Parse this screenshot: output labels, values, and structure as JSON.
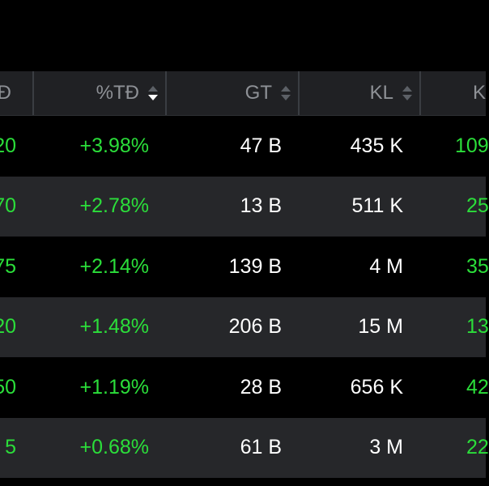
{
  "colors": {
    "background": "#000000",
    "header_bg": "#202124",
    "row_alt_bg": "#26272a",
    "up_green": "#2bde3a",
    "text_white": "#ffffff",
    "header_text": "#8e9196"
  },
  "header": {
    "col0": "Đ",
    "col1": "%TĐ",
    "col2": "GT",
    "col3": "KL",
    "col4": "K"
  },
  "rows": [
    {
      "c0": "20",
      "c1": "+3.98%",
      "c2": "47 B",
      "c3": "435 K",
      "c4": "109"
    },
    {
      "c0": "70",
      "c1": "+2.78%",
      "c2": "13 B",
      "c3": "511 K",
      "c4": "25"
    },
    {
      "c0": "75",
      "c1": "+2.14%",
      "c2": "139 B",
      "c3": "4 M",
      "c4": "35"
    },
    {
      "c0": "20",
      "c1": "+1.48%",
      "c2": "206 B",
      "c3": "15 M",
      "c4": "13"
    },
    {
      "c0": "50",
      "c1": "+1.19%",
      "c2": "28 B",
      "c3": "656 K",
      "c4": "42"
    },
    {
      "c0": "5",
      "c1": "+0.68%",
      "c2": "61 B",
      "c3": "3 M",
      "c4": "22"
    }
  ]
}
